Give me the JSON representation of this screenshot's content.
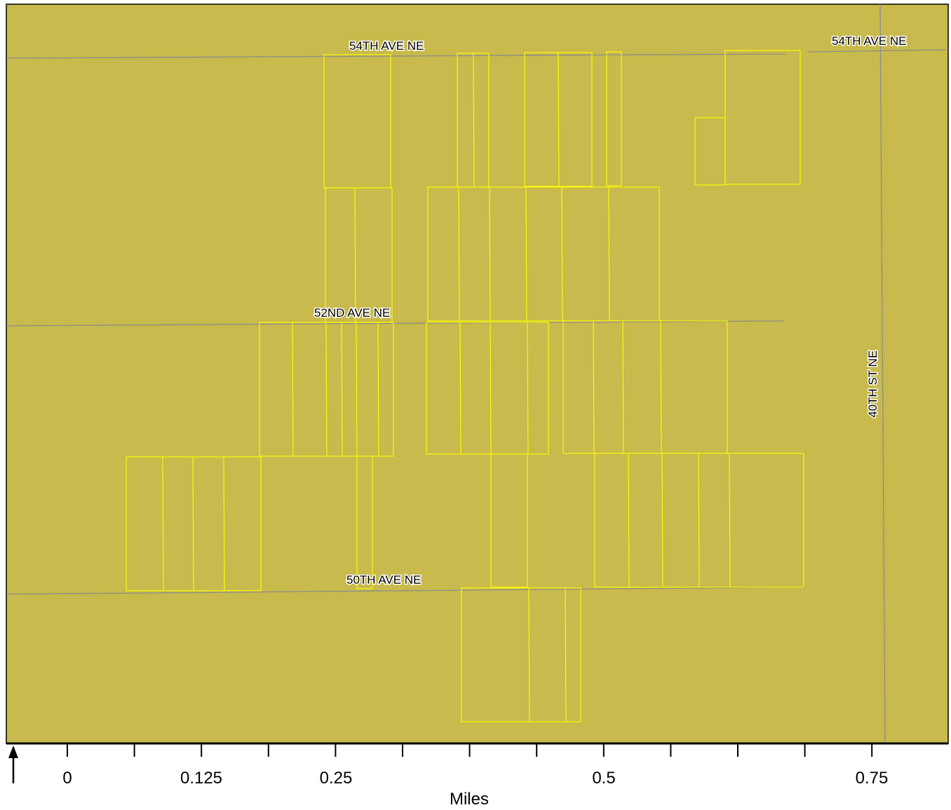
{
  "map": {
    "background_color": "#C8BA4C",
    "parcel_color": "#FFFF00",
    "road_color": "#8C8C8C",
    "roads": [
      {
        "name": "54TH AVE NE"
      },
      {
        "name": "54TH AVE NE"
      },
      {
        "name": "52ND AVE NE"
      },
      {
        "name": "50TH AVE NE"
      },
      {
        "name": "40TH ST NE"
      }
    ]
  },
  "scale_bar": {
    "unit": "Miles",
    "labels": [
      "0",
      "0.125",
      "0.25",
      "0.5",
      "0.75"
    ]
  },
  "north_arrow": {
    "icon": "north-arrow-icon"
  }
}
